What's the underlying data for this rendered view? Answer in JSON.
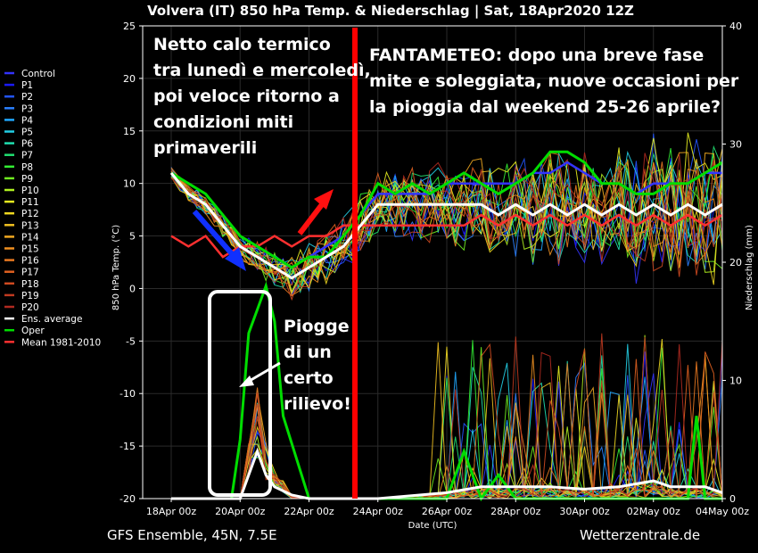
{
  "chart_data": {
    "type": "line",
    "title": "Volvera  (IT)  850 hPa Temp. & Niederschlag | Sat, 18Apr2020 12Z",
    "xlabel": "Date (UTC)",
    "ylabel": "850 hPa Temp. (°C)",
    "y2label": "Niederschlag (mm)",
    "ylim": [
      -20,
      25
    ],
    "y2lim": [
      0,
      40
    ],
    "xlim": [
      0,
      16
    ],
    "x_ticks": [
      {
        "x": 0,
        "label": "18Apr 00z"
      },
      {
        "x": 2,
        "label": "20Apr 00z"
      },
      {
        "x": 4,
        "label": "22Apr 00z"
      },
      {
        "x": 6,
        "label": "24Apr 00z"
      },
      {
        "x": 8,
        "label": "26Apr 00z"
      },
      {
        "x": 10,
        "label": "28Apr 00z"
      },
      {
        "x": 12,
        "label": "30Apr 00z"
      },
      {
        "x": 14,
        "label": "02May 00z"
      },
      {
        "x": 16,
        "label": "04May 00z"
      }
    ],
    "y_ticks": [
      -20,
      -15,
      -10,
      -5,
      0,
      5,
      10,
      15,
      20,
      25
    ],
    "y2_ticks": [
      0,
      10,
      20,
      30,
      40
    ],
    "grid": true,
    "legend_position": "left",
    "legend": [
      {
        "name": "Control",
        "color": "#3333ff"
      },
      {
        "name": "P1",
        "color": "#1a1aff"
      },
      {
        "name": "P2",
        "color": "#2255ff"
      },
      {
        "name": "P3",
        "color": "#2a80ff"
      },
      {
        "name": "P4",
        "color": "#20a8ff"
      },
      {
        "name": "P5",
        "color": "#22cfe6"
      },
      {
        "name": "P6",
        "color": "#20e0b0"
      },
      {
        "name": "P7",
        "color": "#20e070"
      },
      {
        "name": "P8",
        "color": "#33ee33"
      },
      {
        "name": "P9",
        "color": "#70f020"
      },
      {
        "name": "P10",
        "color": "#b0f020"
      },
      {
        "name": "P11",
        "color": "#e8f020"
      },
      {
        "name": "P12",
        "color": "#f0d820"
      },
      {
        "name": "P13",
        "color": "#f0c020"
      },
      {
        "name": "P14",
        "color": "#f0a820"
      },
      {
        "name": "P15",
        "color": "#f09020"
      },
      {
        "name": "P16",
        "color": "#e87820"
      },
      {
        "name": "P17",
        "color": "#e06020"
      },
      {
        "name": "P18",
        "color": "#d04a20"
      },
      {
        "name": "P19",
        "color": "#c03a20"
      },
      {
        "name": "P20",
        "color": "#b02a20"
      },
      {
        "name": "Ens. average",
        "color": "#ffffff"
      },
      {
        "name": "Oper",
        "color": "#00dd00"
      },
      {
        "name": "Mean 1981-2010",
        "color": "#ff3030"
      }
    ],
    "series_temperature": [
      {
        "name": "Oper",
        "x": [
          0,
          0.5,
          1,
          1.5,
          2,
          2.5,
          3,
          3.5,
          4,
          4.5,
          5,
          5.5,
          6,
          6.5,
          7,
          7.5,
          8,
          8.5,
          9,
          9.5,
          10,
          10.5,
          11,
          11.5,
          12,
          12.5,
          13,
          13.5,
          14,
          14.5,
          15,
          15.5,
          16
        ],
        "values": [
          11,
          10,
          9,
          7,
          5,
          4,
          3,
          2,
          3,
          3,
          5,
          7,
          10,
          9,
          10,
          9,
          10,
          11,
          10,
          9,
          10,
          11,
          13,
          13,
          12,
          10,
          10,
          9,
          9,
          10,
          10,
          11,
          12
        ]
      },
      {
        "name": "Control",
        "x": [
          0,
          0.5,
          1,
          1.5,
          2,
          2.5,
          3,
          3.5,
          4,
          4.5,
          5,
          5.5,
          6,
          6.5,
          7,
          7.5,
          8,
          8.5,
          9,
          9.5,
          10,
          10.5,
          11,
          11.5,
          12,
          12.5,
          13,
          13.5,
          14,
          14.5,
          15,
          15.5,
          16
        ],
        "values": [
          11,
          10,
          9,
          7,
          5,
          4,
          3,
          2,
          3,
          4,
          5,
          7,
          9,
          9,
          9,
          9,
          10,
          10,
          10,
          10,
          10,
          11,
          11,
          12,
          11,
          10,
          10,
          9,
          10,
          10,
          10,
          11,
          11
        ]
      },
      {
        "name": "Ens. average",
        "x": [
          0,
          0.5,
          1,
          1.5,
          2,
          2.5,
          3,
          3.5,
          4,
          4.5,
          5,
          5.5,
          6,
          6.5,
          7,
          7.5,
          8,
          8.5,
          9,
          9.5,
          10,
          10.5,
          11,
          11.5,
          12,
          12.5,
          13,
          13.5,
          14,
          14.5,
          15,
          15.5,
          16
        ],
        "values": [
          11,
          9,
          8,
          6,
          4,
          3,
          2,
          1,
          2,
          3,
          4,
          6,
          8,
          8,
          8,
          8,
          8,
          8,
          8,
          7,
          8,
          7,
          8,
          7,
          8,
          7,
          8,
          7,
          8,
          7,
          8,
          7,
          8
        ]
      },
      {
        "name": "Mean 1981-2010",
        "x": [
          0,
          0.5,
          1,
          1.5,
          2,
          2.5,
          3,
          3.5,
          4,
          4.5,
          5,
          5.5,
          6,
          6.5,
          7,
          7.5,
          8,
          8.5,
          9,
          9.5,
          10,
          10.5,
          11,
          11.5,
          12,
          12.5,
          13,
          13.5,
          14,
          14.5,
          15,
          15.5,
          16
        ],
        "values": [
          5,
          4,
          5,
          3,
          4,
          4,
          5,
          4,
          5,
          5,
          6,
          6,
          6,
          6,
          6,
          6,
          6,
          6,
          7,
          6,
          7,
          6,
          7,
          6,
          7,
          6,
          7,
          6,
          7,
          6,
          7,
          6,
          7
        ]
      }
    ],
    "series_precipitation": [
      {
        "name": "Oper",
        "x": [
          0,
          1,
          1.75,
          2,
          2.25,
          2.5,
          2.75,
          3,
          3.25,
          4,
          8,
          8.5,
          9,
          9.5,
          10,
          12,
          14,
          15,
          15.25,
          15.5,
          16
        ],
        "values": [
          0,
          0,
          0,
          5,
          14,
          16,
          18,
          15,
          7,
          0,
          0,
          4,
          0,
          2,
          0,
          0,
          0,
          0,
          7,
          0,
          0
        ]
      },
      {
        "name": "Ens. average",
        "x": [
          0,
          1,
          2,
          2.25,
          2.5,
          2.75,
          3,
          3.5,
          4,
          6,
          8,
          9,
          10,
          11,
          12,
          13,
          14,
          14.5,
          15,
          15.5,
          16
        ],
        "values": [
          0,
          0,
          0,
          2,
          4,
          2,
          1,
          0.3,
          0,
          0,
          0.5,
          1,
          1,
          1,
          0.8,
          1,
          1.5,
          1,
          1,
          1,
          0.5
        ]
      }
    ]
  },
  "annotations": {
    "text_left": [
      "Netto calo termico",
      "tra lunedì e mercoledì,",
      "poi veloce ritorno a",
      "condizioni miti",
      "primaverili"
    ],
    "text_right": [
      "FANTAMETEO: dopo una breve fase",
      "mite e soleggiata, nuove occasioni per",
      "la pioggia dal weekend 25-26 aprile?"
    ],
    "text_rain": [
      "Piogge",
      "di un",
      "certo",
      "rilievo!"
    ]
  },
  "footer": {
    "left": "GFS Ensemble, 45N, 7.5E",
    "right": "Wetterzentrale.de"
  }
}
